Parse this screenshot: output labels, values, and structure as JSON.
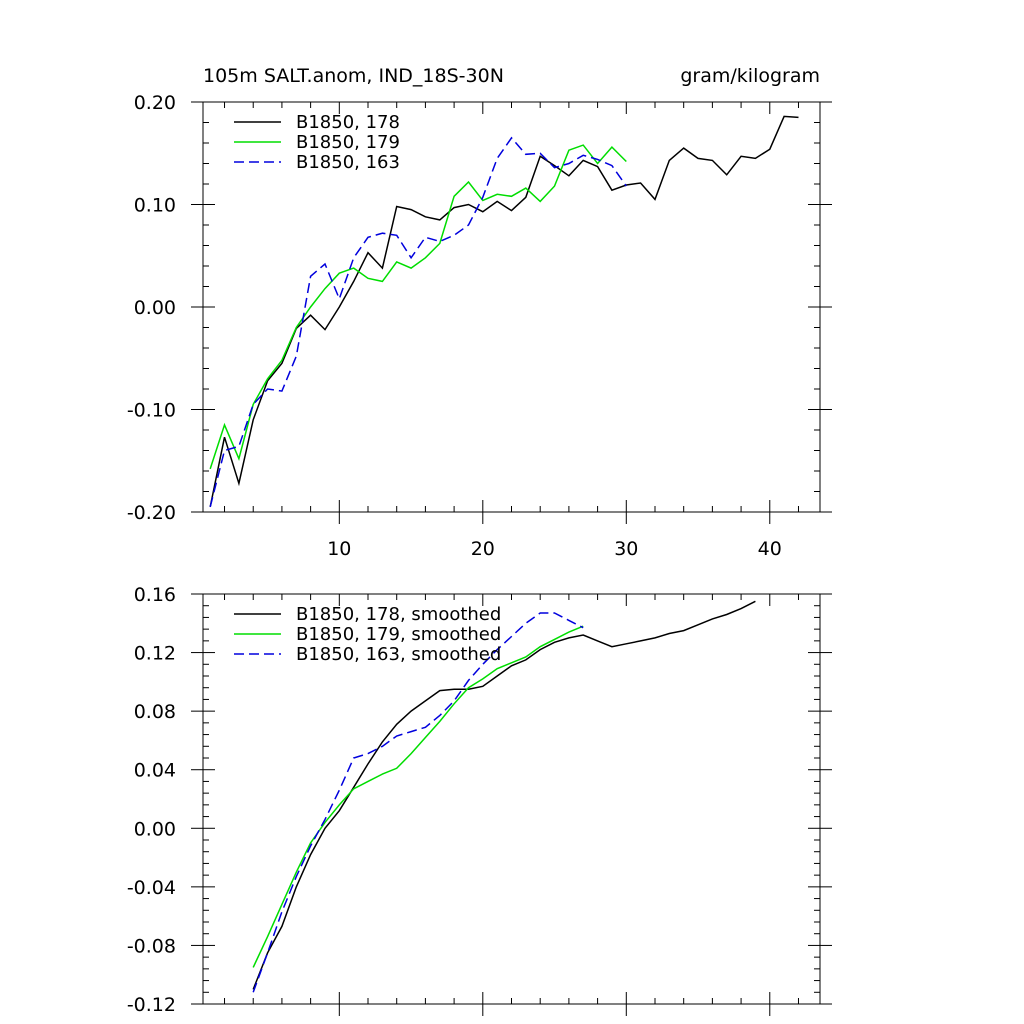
{
  "chart_data": [
    {
      "type": "line",
      "title_left": "105m SALT.anom, IND_18S-30N",
      "title_right": "gram/kilogram",
      "xlabel": "",
      "ylabel": "",
      "xlim": [
        0.5,
        43.5
      ],
      "ylim": [
        -0.2,
        0.2
      ],
      "xticks": [
        10,
        20,
        30,
        40
      ],
      "xtick_labels": [
        "10",
        "20",
        "30",
        "40"
      ],
      "yticks": [
        -0.2,
        -0.1,
        0.0,
        0.1,
        0.2
      ],
      "ytick_labels": [
        "-0.20",
        "-0.10",
        "0.00",
        "0.10",
        "0.20"
      ],
      "legend_position": "top-left",
      "series": [
        {
          "name": "B1850, 178",
          "color": "#000000",
          "dash": "solid",
          "x": [
            1,
            2,
            3,
            4,
            5,
            6,
            7,
            8,
            9,
            10,
            11,
            12,
            13,
            14,
            15,
            16,
            17,
            18,
            19,
            20,
            21,
            22,
            23,
            24,
            25,
            26,
            27,
            28,
            29,
            30,
            31,
            32,
            33,
            34,
            35,
            36,
            37,
            38,
            39,
            40,
            41,
            42
          ],
          "y": [
            -0.195,
            -0.127,
            -0.172,
            -0.11,
            -0.072,
            -0.055,
            -0.021,
            -0.008,
            -0.022,
            0.0,
            0.025,
            0.053,
            0.038,
            0.098,
            0.095,
            0.088,
            0.085,
            0.097,
            0.1,
            0.093,
            0.103,
            0.094,
            0.107,
            0.147,
            0.138,
            0.128,
            0.143,
            0.137,
            0.114,
            0.119,
            0.121,
            0.105,
            0.143,
            0.155,
            0.145,
            0.143,
            0.129,
            0.147,
            0.145,
            0.154,
            0.186,
            0.185
          ]
        },
        {
          "name": "B1850, 179",
          "color": "#00dd00",
          "dash": "solid",
          "x": [
            1,
            2,
            3,
            4,
            5,
            6,
            7,
            8,
            9,
            10,
            11,
            12,
            13,
            14,
            15,
            16,
            17,
            18,
            19,
            20,
            21,
            22,
            23,
            24,
            25,
            26,
            27,
            28,
            29,
            30
          ],
          "y": [
            -0.158,
            -0.115,
            -0.148,
            -0.095,
            -0.07,
            -0.052,
            -0.02,
            0.0,
            0.018,
            0.033,
            0.038,
            0.028,
            0.025,
            0.044,
            0.038,
            0.048,
            0.062,
            0.108,
            0.122,
            0.104,
            0.11,
            0.108,
            0.116,
            0.103,
            0.118,
            0.153,
            0.158,
            0.14,
            0.156,
            0.142
          ]
        },
        {
          "name": "B1850, 163",
          "color": "#0000dd",
          "dash": "dashed",
          "x": [
            1,
            2,
            3,
            4,
            5,
            6,
            7,
            8,
            9,
            10,
            11,
            12,
            13,
            14,
            15,
            16,
            17,
            18,
            19,
            20,
            21,
            22,
            23,
            24,
            25,
            26,
            27,
            28,
            29,
            30
          ],
          "y": [
            -0.195,
            -0.14,
            -0.136,
            -0.095,
            -0.08,
            -0.082,
            -0.048,
            0.03,
            0.042,
            0.008,
            0.048,
            0.068,
            0.072,
            0.07,
            0.048,
            0.068,
            0.064,
            0.07,
            0.08,
            0.107,
            0.145,
            0.165,
            0.149,
            0.15,
            0.136,
            0.14,
            0.148,
            0.144,
            0.138,
            0.118
          ]
        }
      ]
    },
    {
      "type": "line",
      "xlabel": "",
      "ylabel": "",
      "xlim": [
        0.5,
        43.5
      ],
      "ylim": [
        -0.12,
        0.16
      ],
      "xticks": [
        10,
        20,
        30,
        40
      ],
      "xtick_labels": [],
      "yticks": [
        -0.12,
        -0.08,
        -0.04,
        0.0,
        0.04,
        0.08,
        0.12,
        0.16
      ],
      "ytick_labels": [
        "-0.12",
        "-0.08",
        "-0.04",
        "0.00",
        "0.04",
        "0.08",
        "0.12",
        "0.16"
      ],
      "legend_position": "top-left",
      "series": [
        {
          "name": "B1850, 178, smoothed",
          "color": "#000000",
          "dash": "solid",
          "x": [
            4,
            5,
            6,
            7,
            8,
            9,
            10,
            11,
            12,
            13,
            14,
            15,
            16,
            17,
            18,
            19,
            20,
            21,
            22,
            23,
            24,
            25,
            26,
            27,
            28,
            29,
            30,
            31,
            32,
            33,
            34,
            35,
            36,
            37,
            38,
            39
          ],
          "y": [
            -0.11,
            -0.085,
            -0.067,
            -0.04,
            -0.018,
            0.0,
            0.012,
            0.028,
            0.044,
            0.059,
            0.071,
            0.08,
            0.087,
            0.094,
            0.095,
            0.095,
            0.097,
            0.104,
            0.111,
            0.115,
            0.122,
            0.127,
            0.13,
            0.132,
            0.128,
            0.124,
            0.126,
            0.128,
            0.13,
            0.133,
            0.135,
            0.139,
            0.143,
            0.146,
            0.15,
            0.155
          ]
        },
        {
          "name": "B1850, 179, smoothed",
          "color": "#00dd00",
          "dash": "solid",
          "x": [
            4,
            5,
            6,
            7,
            8,
            9,
            10,
            11,
            12,
            13,
            14,
            15,
            16,
            17,
            18,
            19,
            20,
            21,
            22,
            23,
            24,
            25,
            26,
            27
          ],
          "y": [
            -0.095,
            -0.074,
            -0.052,
            -0.03,
            -0.01,
            0.004,
            0.016,
            0.027,
            0.032,
            0.037,
            0.041,
            0.051,
            0.062,
            0.073,
            0.085,
            0.096,
            0.102,
            0.109,
            0.113,
            0.117,
            0.124,
            0.129,
            0.134,
            0.138
          ]
        },
        {
          "name": "B1850, 163, smoothed",
          "color": "#0000dd",
          "dash": "dashed",
          "x": [
            4,
            5,
            6,
            7,
            8,
            9,
            10,
            11,
            12,
            13,
            14,
            15,
            16,
            17,
            18,
            19,
            20,
            21,
            22,
            23,
            24,
            25,
            26,
            27
          ],
          "y": [
            -0.112,
            -0.085,
            -0.057,
            -0.033,
            -0.012,
            0.006,
            0.026,
            0.048,
            0.051,
            0.056,
            0.063,
            0.066,
            0.069,
            0.077,
            0.087,
            0.101,
            0.112,
            0.122,
            0.131,
            0.14,
            0.147,
            0.147,
            0.142,
            0.137
          ]
        }
      ]
    }
  ]
}
